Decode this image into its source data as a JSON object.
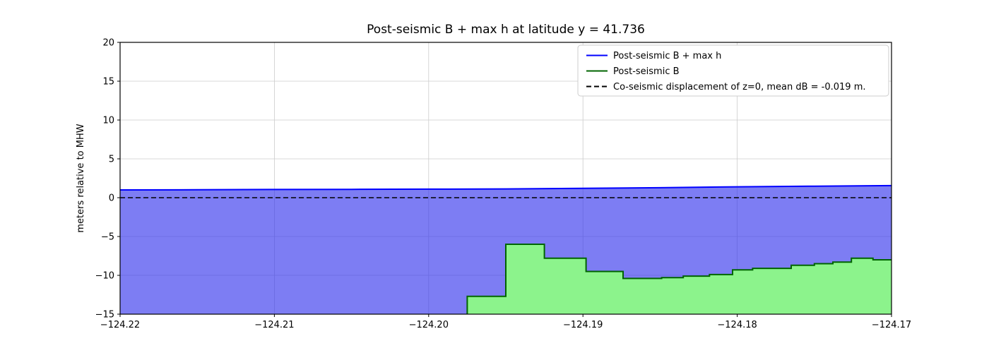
{
  "figure": {
    "title": "Post-seismic B + max h at latitude y = 41.736"
  },
  "chart_data": {
    "type": "line",
    "title": "Post-seismic B + max h at latitude y = 41.736",
    "xlabel": "",
    "ylabel": "meters relative to MHW",
    "xlim": [
      -124.22,
      -124.17
    ],
    "ylim": [
      -15,
      20
    ],
    "x_ticks": [
      -124.22,
      -124.21,
      -124.2,
      -124.19,
      -124.18,
      -124.17
    ],
    "x_tick_labels": [
      "−124.22",
      "−124.21",
      "−124.20",
      "−124.19",
      "−124.18",
      "−124.17"
    ],
    "y_ticks": [
      -15,
      -10,
      -5,
      0,
      5,
      10,
      15,
      20
    ],
    "y_tick_labels": [
      "−15",
      "−10",
      "−5",
      "0",
      "5",
      "10",
      "15",
      "20"
    ],
    "grid": true,
    "grid_color": "#cccccc",
    "background": "#ffffff",
    "legend": {
      "position": "upper right",
      "entries": [
        {
          "label": "Post-seismic B + max h",
          "color": "#0000ff",
          "dash": "solid"
        },
        {
          "label": "Post-seismic B",
          "color": "#006400",
          "dash": "solid"
        },
        {
          "label": "Co-seismic displacement of z=0, mean dB = -0.019 m.",
          "color": "#000000",
          "dash": "dashed"
        }
      ]
    },
    "series": [
      {
        "name": "Post-seismic B + max h",
        "kind": "line",
        "color": "#0000ff",
        "fill": "rgba(45,45,235,0.62)",
        "fill_to": -15,
        "x": [
          -124.22,
          -124.215,
          -124.21,
          -124.205,
          -124.2,
          -124.195,
          -124.19,
          -124.185,
          -124.18,
          -124.175,
          -124.17
        ],
        "y": [
          1.0,
          1.02,
          1.05,
          1.07,
          1.1,
          1.13,
          1.2,
          1.28,
          1.4,
          1.48,
          1.55
        ]
      },
      {
        "name": "Post-seismic B",
        "kind": "steps",
        "color": "#006400",
        "fill": "#8cf38c",
        "fill_to": -15,
        "steps": [
          {
            "x0": -124.1975,
            "x1": -124.195,
            "level": -12.7
          },
          {
            "x0": -124.195,
            "x1": -124.1925,
            "level": -6.0
          },
          {
            "x0": -124.1925,
            "x1": -124.1898,
            "level": -7.8
          },
          {
            "x0": -124.1898,
            "x1": -124.1874,
            "level": -9.5
          },
          {
            "x0": -124.1874,
            "x1": -124.1849,
            "level": -10.4
          },
          {
            "x0": -124.1849,
            "x1": -124.1835,
            "level": -10.3
          },
          {
            "x0": -124.1835,
            "x1": -124.1818,
            "level": -10.1
          },
          {
            "x0": -124.1818,
            "x1": -124.1803,
            "level": -9.9
          },
          {
            "x0": -124.1803,
            "x1": -124.179,
            "level": -9.3
          },
          {
            "x0": -124.179,
            "x1": -124.1765,
            "level": -9.1
          },
          {
            "x0": -124.1765,
            "x1": -124.175,
            "level": -8.7
          },
          {
            "x0": -124.175,
            "x1": -124.1738,
            "level": -8.5
          },
          {
            "x0": -124.1738,
            "x1": -124.1726,
            "level": -8.3
          },
          {
            "x0": -124.1726,
            "x1": -124.1712,
            "level": -7.8
          },
          {
            "x0": -124.1712,
            "x1": -124.17,
            "level": -8.0
          }
        ]
      },
      {
        "name": "Co-seismic displacement of z=0, mean dB = -0.019 m.",
        "kind": "hline",
        "color": "#000000",
        "dash": "dashed",
        "y_value": 0
      }
    ]
  }
}
